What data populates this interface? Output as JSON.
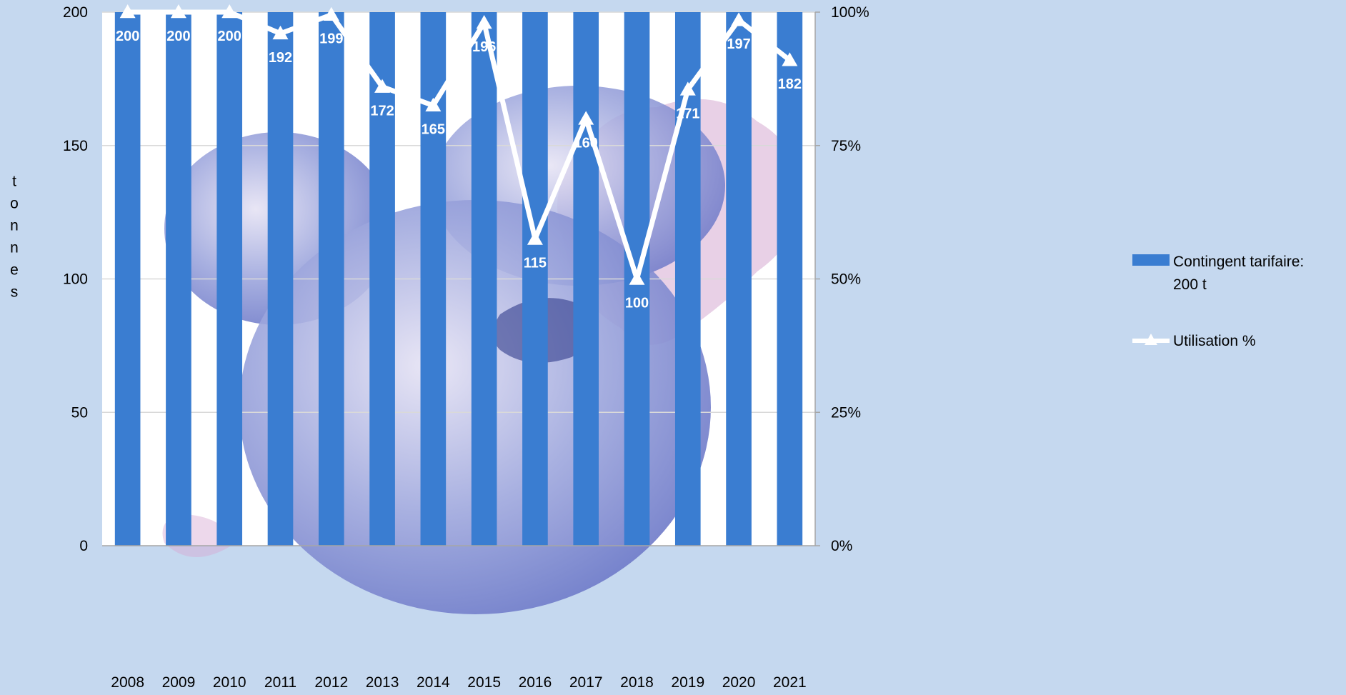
{
  "colors": {
    "background": "#c5d8ef",
    "plot_area": "#ffffff",
    "bar": "#3a7dd1",
    "line": "#ffffff",
    "text": "#000000",
    "gridline": "#d9d9d9",
    "axis": "#a6a6a6",
    "illustration_blue": "#6d79c8",
    "illustration_pink": "#d6a9d2"
  },
  "chart_data": {
    "type": "bar",
    "categories": [
      "2008",
      "2009",
      "2010",
      "2011",
      "2012",
      "2013",
      "2014",
      "2015",
      "2016",
      "2017",
      "2018",
      "2019",
      "2020",
      "2021"
    ],
    "series": [
      {
        "name": "Contingent tarifaire: 200 t",
        "type": "bar",
        "axis": "left",
        "values": [
          200,
          200,
          200,
          200,
          200,
          200,
          200,
          200,
          200,
          200,
          200,
          200,
          200,
          200
        ]
      },
      {
        "name": "Utilisation %",
        "type": "line",
        "axis": "right",
        "marker": "triangle",
        "values": [
          100,
          100,
          100,
          96,
          99.5,
          86,
          82.5,
          98,
          57.5,
          80,
          50,
          85.5,
          98.5,
          91
        ],
        "data_labels": [
          "200",
          "200",
          "200",
          "192",
          "199",
          "172",
          "165",
          "196",
          "115",
          "160",
          "100",
          "171",
          "197",
          "182"
        ]
      }
    ],
    "ylabel": "tonnes",
    "ylim": [
      0,
      200
    ],
    "y_ticks": [
      "0",
      "50",
      "100",
      "150",
      "200"
    ],
    "y2lim": [
      0,
      100
    ],
    "y2_ticks": [
      "0%",
      "25%",
      "50%",
      "75%",
      "100%"
    ],
    "grid": true,
    "legend": {
      "position": "right",
      "items": [
        "Contingent tarifaire: 200 t",
        "Utilisation %"
      ]
    },
    "background_illustration": "blueberries watercolor"
  }
}
